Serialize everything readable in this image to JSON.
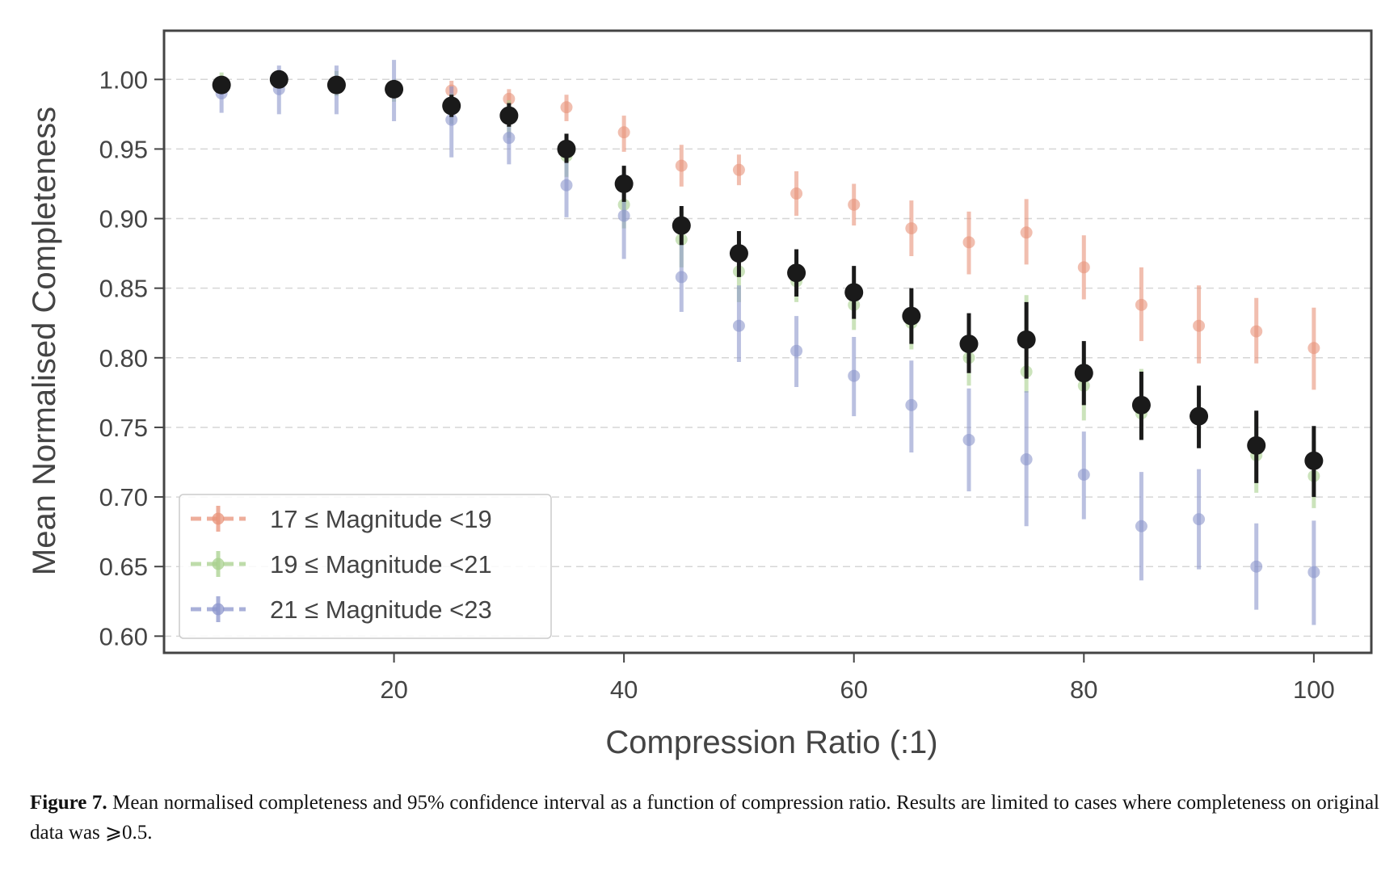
{
  "chart_data": {
    "type": "scatter",
    "title": "",
    "xlabel": "Compression Ratio (:1)",
    "ylabel": "Mean Normalised Completeness",
    "xlim": [
      0,
      105
    ],
    "ylim": [
      0.588,
      1.035
    ],
    "xticks": [
      20,
      40,
      60,
      80,
      100
    ],
    "yticks": [
      0.6,
      0.65,
      0.7,
      0.75,
      0.8,
      0.85,
      0.9,
      0.95,
      1.0
    ],
    "ytick_labels": [
      "0.60",
      "0.65",
      "0.70",
      "0.75",
      "0.80",
      "0.85",
      "0.90",
      "0.95",
      "1.00"
    ],
    "grid": "horizontal dashed",
    "legend_position": "bottom-left",
    "x": [
      5,
      10,
      15,
      20,
      25,
      30,
      35,
      40,
      45,
      50,
      55,
      60,
      65,
      70,
      75,
      80,
      85,
      90,
      95,
      100
    ],
    "series": [
      {
        "name": "17 ≤ Magnitude <19",
        "color": "#e8937a",
        "values": [
          0.996,
          1.0,
          0.996,
          0.993,
          0.992,
          0.986,
          0.98,
          0.962,
          0.938,
          0.935,
          0.918,
          0.91,
          0.893,
          0.883,
          0.89,
          0.865,
          0.838,
          0.823,
          0.819,
          0.807
        ],
        "ci_low": [
          0.99,
          0.994,
          0.99,
          0.986,
          0.984,
          0.978,
          0.97,
          0.948,
          0.923,
          0.924,
          0.902,
          0.895,
          0.873,
          0.86,
          0.867,
          0.842,
          0.812,
          0.796,
          0.796,
          0.777
        ],
        "ci_high": [
          1.0,
          1.005,
          1.002,
          0.999,
          0.999,
          0.993,
          0.989,
          0.974,
          0.953,
          0.946,
          0.934,
          0.925,
          0.913,
          0.905,
          0.914,
          0.888,
          0.865,
          0.852,
          0.843,
          0.836
        ]
      },
      {
        "name": "19 ≤ Magnitude <21",
        "color": "#a8d08d",
        "values": [
          0.998,
          1.0,
          0.996,
          0.993,
          0.98,
          0.972,
          0.945,
          0.91,
          0.885,
          0.862,
          0.855,
          0.838,
          0.825,
          0.8,
          0.79,
          0.78,
          0.76,
          0.758,
          0.73,
          0.715
        ],
        "ci_low": [
          0.993,
          0.994,
          0.988,
          0.984,
          0.968,
          0.958,
          0.93,
          0.893,
          0.865,
          0.84,
          0.84,
          0.82,
          0.806,
          0.78,
          0.775,
          0.755,
          0.742,
          0.742,
          0.703,
          0.692
        ],
        "ci_high": [
          1.005,
          1.005,
          1.006,
          1.0,
          0.99,
          0.985,
          0.958,
          0.925,
          0.905,
          0.882,
          0.872,
          0.855,
          0.842,
          0.818,
          0.845,
          0.8,
          0.792,
          0.772,
          0.76,
          0.74
        ]
      },
      {
        "name": "21 ≤ Magnitude <23",
        "color": "#8c96cc",
        "values": [
          0.99,
          0.993,
          0.996,
          0.992,
          0.971,
          0.958,
          0.924,
          0.902,
          0.858,
          0.823,
          0.805,
          0.787,
          0.766,
          0.741,
          0.727,
          0.716,
          0.679,
          0.684,
          0.65,
          0.646
        ],
        "ci_low": [
          0.976,
          0.975,
          0.975,
          0.97,
          0.944,
          0.939,
          0.901,
          0.871,
          0.833,
          0.797,
          0.779,
          0.758,
          0.732,
          0.704,
          0.679,
          0.684,
          0.64,
          0.648,
          0.619,
          0.608
        ],
        "ci_high": [
          1.002,
          1.01,
          1.01,
          1.014,
          0.995,
          0.975,
          0.948,
          0.932,
          0.882,
          0.852,
          0.83,
          0.815,
          0.798,
          0.778,
          0.776,
          0.747,
          0.718,
          0.72,
          0.681,
          0.683
        ]
      },
      {
        "name": "",
        "color": "#1a1a1a",
        "values": [
          0.996,
          1.0,
          0.996,
          0.993,
          0.981,
          0.974,
          0.95,
          0.925,
          0.895,
          0.875,
          0.861,
          0.847,
          0.83,
          0.81,
          0.813,
          0.789,
          0.766,
          0.758,
          0.737,
          0.726
        ],
        "ci_low": [
          0.991,
          0.995,
          0.99,
          0.987,
          0.973,
          0.966,
          0.94,
          0.912,
          0.881,
          0.858,
          0.844,
          0.828,
          0.81,
          0.789,
          0.785,
          0.766,
          0.741,
          0.735,
          0.71,
          0.7
        ],
        "ci_high": [
          1.002,
          1.006,
          1.002,
          0.999,
          0.989,
          0.983,
          0.961,
          0.938,
          0.909,
          0.891,
          0.878,
          0.866,
          0.85,
          0.832,
          0.84,
          0.812,
          0.79,
          0.78,
          0.762,
          0.751
        ]
      }
    ]
  },
  "caption": {
    "label": "Figure 7.",
    "text": " Mean normalised completeness and 95% confidence interval as a function of compression ratio. Results are limited to cases where completeness on original data was ⩾0.5."
  }
}
